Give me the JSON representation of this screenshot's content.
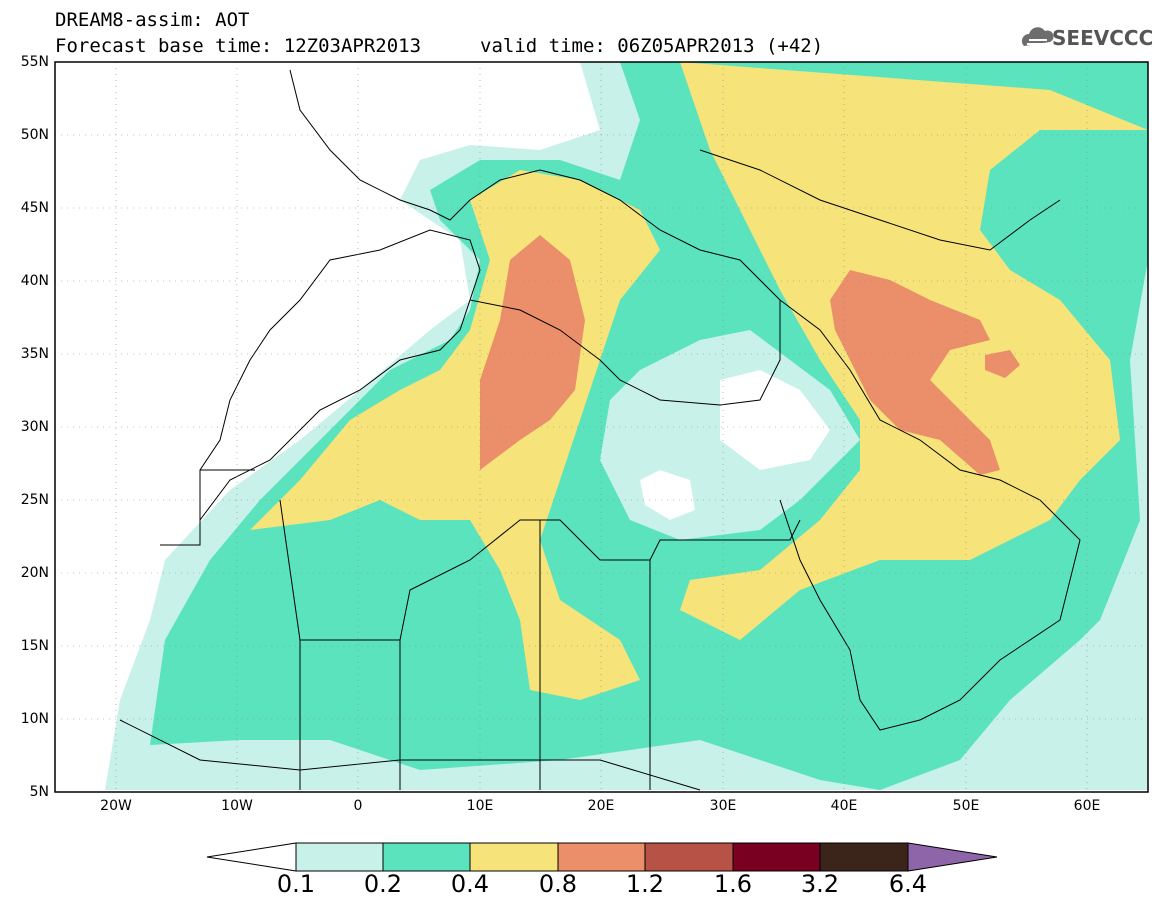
{
  "header": {
    "title_line1": "DREAM8-assim: AOT",
    "base_time": "Forecast base time: 12Z03APR2013",
    "valid_time": "valid time: 06Z05APR2013 (+42)",
    "logo_text": "SEEVCCC"
  },
  "map": {
    "lat_labels": [
      "55N",
      "50N",
      "45N",
      "40N",
      "35N",
      "30N",
      "25N",
      "20N",
      "15N",
      "10N",
      "5N"
    ],
    "lon_labels": [
      "20W",
      "10W",
      "0",
      "10E",
      "20E",
      "30E",
      "40E",
      "50E",
      "60E"
    ],
    "extent": {
      "lon_min": -25,
      "lon_max": 65,
      "lat_min": 5,
      "lat_max": 55
    }
  },
  "colorbar": {
    "levels": [
      "0.1",
      "0.2",
      "0.4",
      "0.8",
      "1.2",
      "1.6",
      "3.2",
      "6.4"
    ],
    "colors": [
      "#ffffff",
      "#c7f1e9",
      "#5be3be",
      "#f6e37a",
      "#ea8f6a",
      "#b65346",
      "#7a0021",
      "#3b2419",
      "#8f65aa"
    ]
  }
}
